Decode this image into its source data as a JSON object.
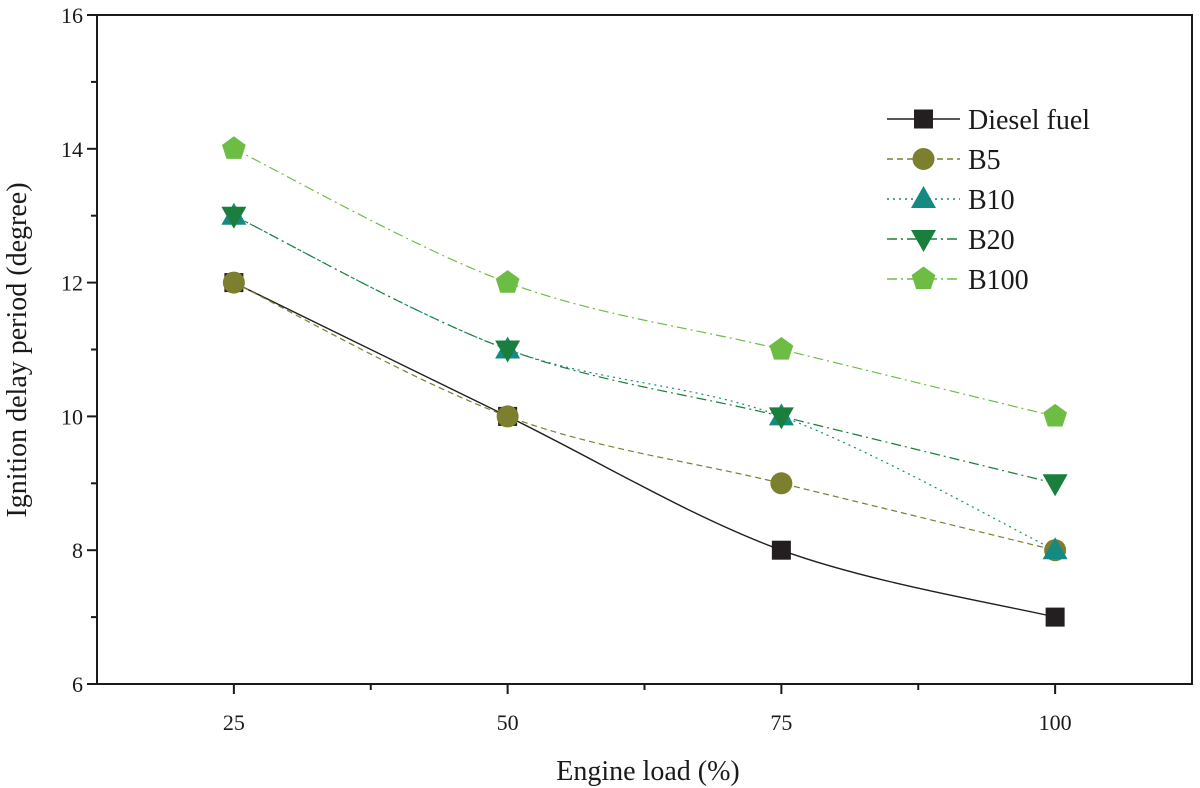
{
  "chart_data": {
    "type": "line",
    "xlabel": "Engine load (%)",
    "ylabel": "Ignition delay period (degree)",
    "x": [
      25,
      50,
      75,
      100
    ],
    "xticks": [
      25,
      50,
      75,
      100
    ],
    "yticks": [
      6,
      8,
      10,
      12,
      14,
      16
    ],
    "xlim": [
      12.5,
      112.5
    ],
    "ylim": [
      6,
      16
    ],
    "grid": false,
    "legend_position": "upper-right",
    "series": [
      {
        "name": "Diesel fuel",
        "values": [
          12,
          10,
          8,
          7
        ],
        "color": "#231f20",
        "marker": "square",
        "dash": "solid"
      },
      {
        "name": "B5",
        "values": [
          12,
          10,
          9,
          8
        ],
        "color": "#7b7f2e",
        "marker": "circle",
        "dash": "dashed"
      },
      {
        "name": "B10",
        "values": [
          13,
          11,
          10,
          8
        ],
        "color": "#148a82",
        "marker": "triangle-up",
        "dash": "dotted"
      },
      {
        "name": "B20",
        "values": [
          13,
          11,
          10,
          9
        ],
        "color": "#1a7f3c",
        "marker": "triangle-down",
        "dash": "dashdot"
      },
      {
        "name": "B100",
        "values": [
          14,
          12,
          11,
          10
        ],
        "color": "#6dbd45",
        "marker": "pentagon",
        "dash": "dashdot"
      }
    ]
  }
}
